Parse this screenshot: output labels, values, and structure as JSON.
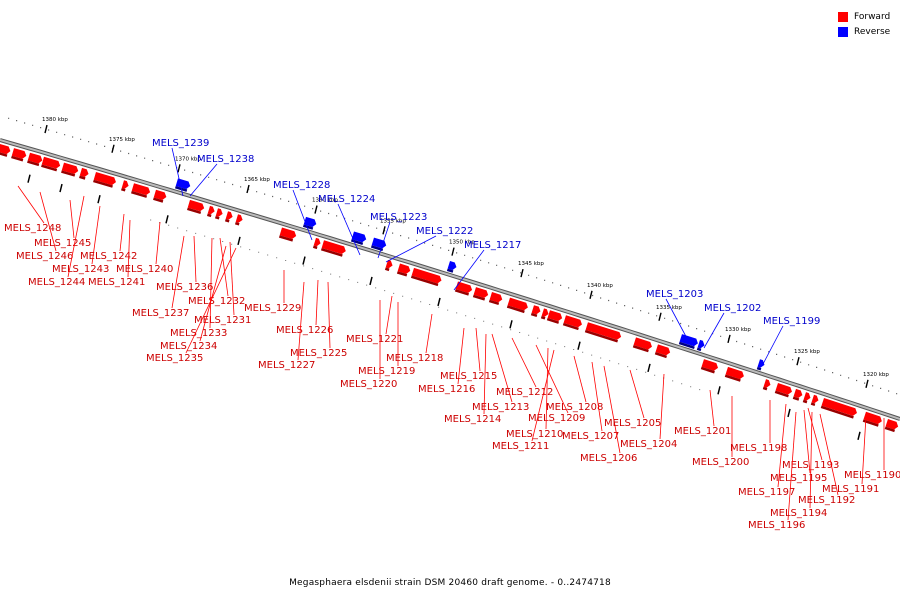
{
  "legend": [
    {
      "label": "Forward",
      "color": "#ff0000"
    },
    {
      "label": "Reverse",
      "color": "#0000ff"
    }
  ],
  "caption": "Megasphaera elsdenii strain DSM 20460 draft genome. - 0..2474718",
  "colors": {
    "forward": "#ff0000",
    "reverse": "#0000ff",
    "forward_text": "#cc0000",
    "reverse_text": "#0000cc",
    "backbone": "#888888"
  },
  "ticks": [
    {
      "label": "1380 kbp",
      "kbp": 1380
    },
    {
      "label": "1375 kbp",
      "kbp": 1375
    },
    {
      "label": "1370 kbp",
      "kbp": 1370
    },
    {
      "label": "1365 kbp",
      "kbp": 1365
    },
    {
      "label": "1360 kbp",
      "kbp": 1360
    },
    {
      "label": "1355 kbp",
      "kbp": 1355
    },
    {
      "label": "1350 kbp",
      "kbp": 1350
    },
    {
      "label": "1345 kbp",
      "kbp": 1345
    },
    {
      "label": "1340 kbp",
      "kbp": 1340
    },
    {
      "label": "1335 kbp",
      "kbp": 1335
    },
    {
      "label": "1330 kbp",
      "kbp": 1330
    },
    {
      "label": "1325 kbp",
      "kbp": 1325
    },
    {
      "label": "1320 kbp",
      "kbp": 1320
    }
  ],
  "reverse_genes": [
    "MELS_1239",
    "MELS_1238",
    "MELS_1228",
    "MELS_1224",
    "MELS_1223",
    "MELS_1222",
    "MELS_1217",
    "MELS_1203",
    "MELS_1202",
    "MELS_1199"
  ],
  "forward_genes": [
    "MELS_1248",
    "MELS_1245",
    "MELS_1246",
    "MELS_1243",
    "MELS_1244",
    "MELS_1242",
    "MELS_1241",
    "MELS_1240",
    "MELS_1236",
    "MELS_1237",
    "MELS_1232",
    "MELS_1231",
    "MELS_1233",
    "MELS_1234",
    "MELS_1235",
    "MELS_1229",
    "MELS_1226",
    "MELS_1225",
    "MELS_1227",
    "MELS_1221",
    "MELS_1219",
    "MELS_1220",
    "MELS_1218",
    "MELS_1215",
    "MELS_1216",
    "MELS_1213",
    "MELS_1214",
    "MELS_1212",
    "MELS_1209",
    "MELS_1210",
    "MELS_1211",
    "MELS_1208",
    "MELS_1207",
    "MELS_1206",
    "MELS_1205",
    "MELS_1204",
    "MELS_1201",
    "MELS_1200",
    "MELS_1198",
    "MELS_1197",
    "MELS_1193",
    "MELS_1195",
    "MELS_1196",
    "MELS_1194",
    "MELS_1192",
    "MELS_1191",
    "MELS_1190"
  ]
}
